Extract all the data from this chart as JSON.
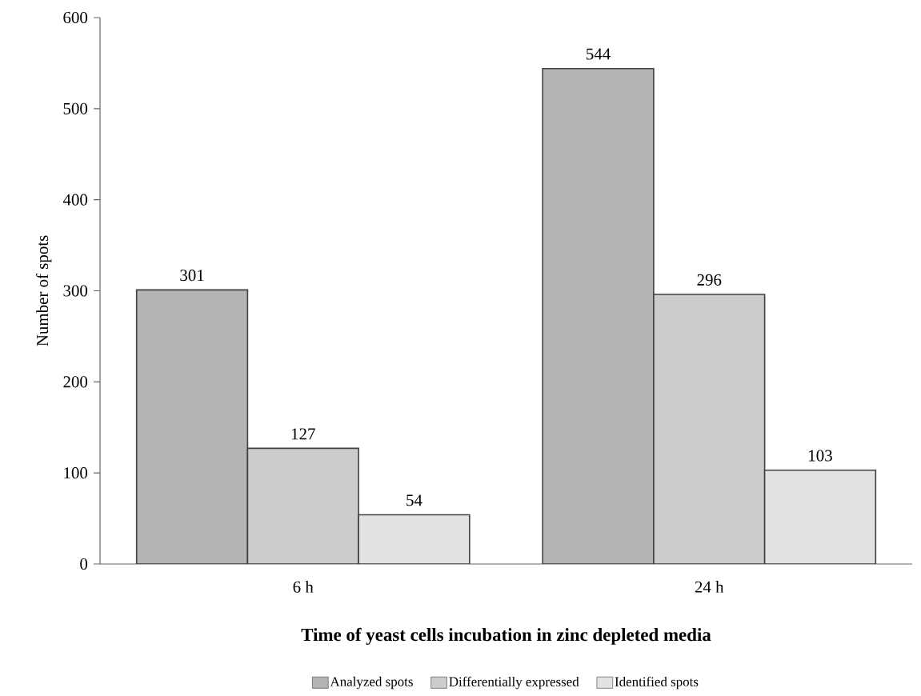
{
  "chart_data": {
    "type": "bar",
    "xlabel": "Time of yeast cells incubation in zinc depleted media",
    "ylabel": "Number of spots",
    "categories": [
      "6 h",
      "24 h"
    ],
    "series": [
      {
        "name": "Analyzed spots",
        "color": "#b4b4b4",
        "values": [
          301,
          544
        ]
      },
      {
        "name": "Differentially expressed",
        "color": "#cccccc",
        "values": [
          127,
          296
        ]
      },
      {
        "name": "Identified spots",
        "color": "#e2e2e2",
        "values": [
          54,
          103
        ]
      }
    ],
    "ylim": [
      0,
      600
    ],
    "yticks": [
      0,
      100,
      200,
      300,
      400,
      500,
      600
    ],
    "data_labels": true,
    "legend": "bottom",
    "grid": false
  }
}
